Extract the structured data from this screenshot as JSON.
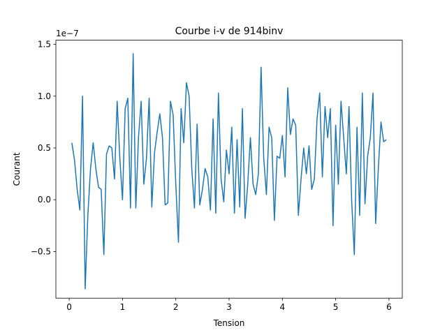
{
  "chart_data": {
    "type": "line",
    "title": "Courbe i-v de 914binv",
    "xlabel": "Tension",
    "ylabel": "Courant",
    "y_offset_text": "1e−7",
    "y_scale_factor": 1e-07,
    "xlim": [
      -0.25,
      6.25
    ],
    "ylim": [
      -0.95,
      1.54
    ],
    "x_ticks": [
      0,
      1,
      2,
      3,
      4,
      5,
      6
    ],
    "x_tick_labels": [
      "0",
      "1",
      "2",
      "3",
      "4",
      "5",
      "6"
    ],
    "y_ticks": [
      -0.5,
      0.0,
      0.5,
      1.0,
      1.5
    ],
    "y_tick_labels": [
      "−0.5",
      "0.0",
      "0.5",
      "1.0",
      "1.5"
    ],
    "grid": false,
    "series": [
      {
        "color": "#1f77b4",
        "x": [
          0.05,
          0.1,
          0.15,
          0.2,
          0.25,
          0.3,
          0.35,
          0.4,
          0.45,
          0.5,
          0.55,
          0.6,
          0.65,
          0.7,
          0.75,
          0.8,
          0.85,
          0.9,
          0.95,
          1.0,
          1.05,
          1.1,
          1.15,
          1.2,
          1.25,
          1.3,
          1.35,
          1.4,
          1.45,
          1.5,
          1.55,
          1.6,
          1.65,
          1.7,
          1.75,
          1.8,
          1.85,
          1.9,
          1.95,
          2.0,
          2.05,
          2.1,
          2.15,
          2.2,
          2.25,
          2.3,
          2.35,
          2.4,
          2.45,
          2.5,
          2.55,
          2.6,
          2.65,
          2.7,
          2.75,
          2.8,
          2.85,
          2.9,
          2.95,
          3.0,
          3.05,
          3.1,
          3.15,
          3.2,
          3.25,
          3.3,
          3.35,
          3.4,
          3.45,
          3.5,
          3.55,
          3.6,
          3.65,
          3.7,
          3.75,
          3.8,
          3.85,
          3.9,
          3.95,
          4.0,
          4.05,
          4.1,
          4.15,
          4.2,
          4.25,
          4.3,
          4.35,
          4.4,
          4.45,
          4.5,
          4.55,
          4.6,
          4.65,
          4.7,
          4.75,
          4.8,
          4.85,
          4.9,
          4.95,
          5.0,
          5.05,
          5.1,
          5.15,
          5.2,
          5.25,
          5.3,
          5.35,
          5.4,
          5.45,
          5.5,
          5.55,
          5.6,
          5.65,
          5.7,
          5.75,
          5.8,
          5.85,
          5.9,
          5.95
        ],
        "y": [
          0.55,
          0.38,
          0.1,
          -0.1,
          1.0,
          -0.86,
          -0.15,
          0.3,
          0.55,
          0.3,
          0.12,
          0.1,
          -0.53,
          0.44,
          0.52,
          0.5,
          0.2,
          0.95,
          0.4,
          0.0,
          0.88,
          0.98,
          -0.08,
          1.41,
          -0.08,
          0.6,
          0.95,
          0.15,
          0.4,
          0.98,
          -0.07,
          0.45,
          0.65,
          0.83,
          0.6,
          -0.05,
          -0.03,
          0.95,
          0.82,
          0.15,
          -0.41,
          0.88,
          0.55,
          1.13,
          1.0,
          0.3,
          -0.08,
          0.73,
          -0.05,
          0.1,
          0.3,
          0.22,
          -0.1,
          0.78,
          -0.13,
          1.03,
          0.2,
          -0.02,
          0.48,
          0.25,
          0.7,
          -0.13,
          0.58,
          -0.07,
          0.88,
          -0.18,
          0.15,
          0.6,
          0.15,
          0.05,
          0.25,
          1.28,
          0.4,
          0.05,
          0.7,
          0.6,
          -0.2,
          0.42,
          0.4,
          0.62,
          0.22,
          1.08,
          0.63,
          0.78,
          0.72,
          -0.15,
          0.2,
          0.5,
          0.25,
          0.52,
          0.1,
          0.2,
          0.78,
          1.03,
          0.22,
          0.9,
          0.6,
          0.88,
          -0.25,
          0.72,
          0.15,
          0.95,
          0.6,
          0.25,
          0.9,
          -0.01,
          -0.53,
          0.7,
          -0.15,
          1.03,
          -0.04,
          0.42,
          0.6,
          1.03,
          -0.23,
          0.3,
          0.75,
          0.56,
          0.58
        ]
      }
    ]
  }
}
